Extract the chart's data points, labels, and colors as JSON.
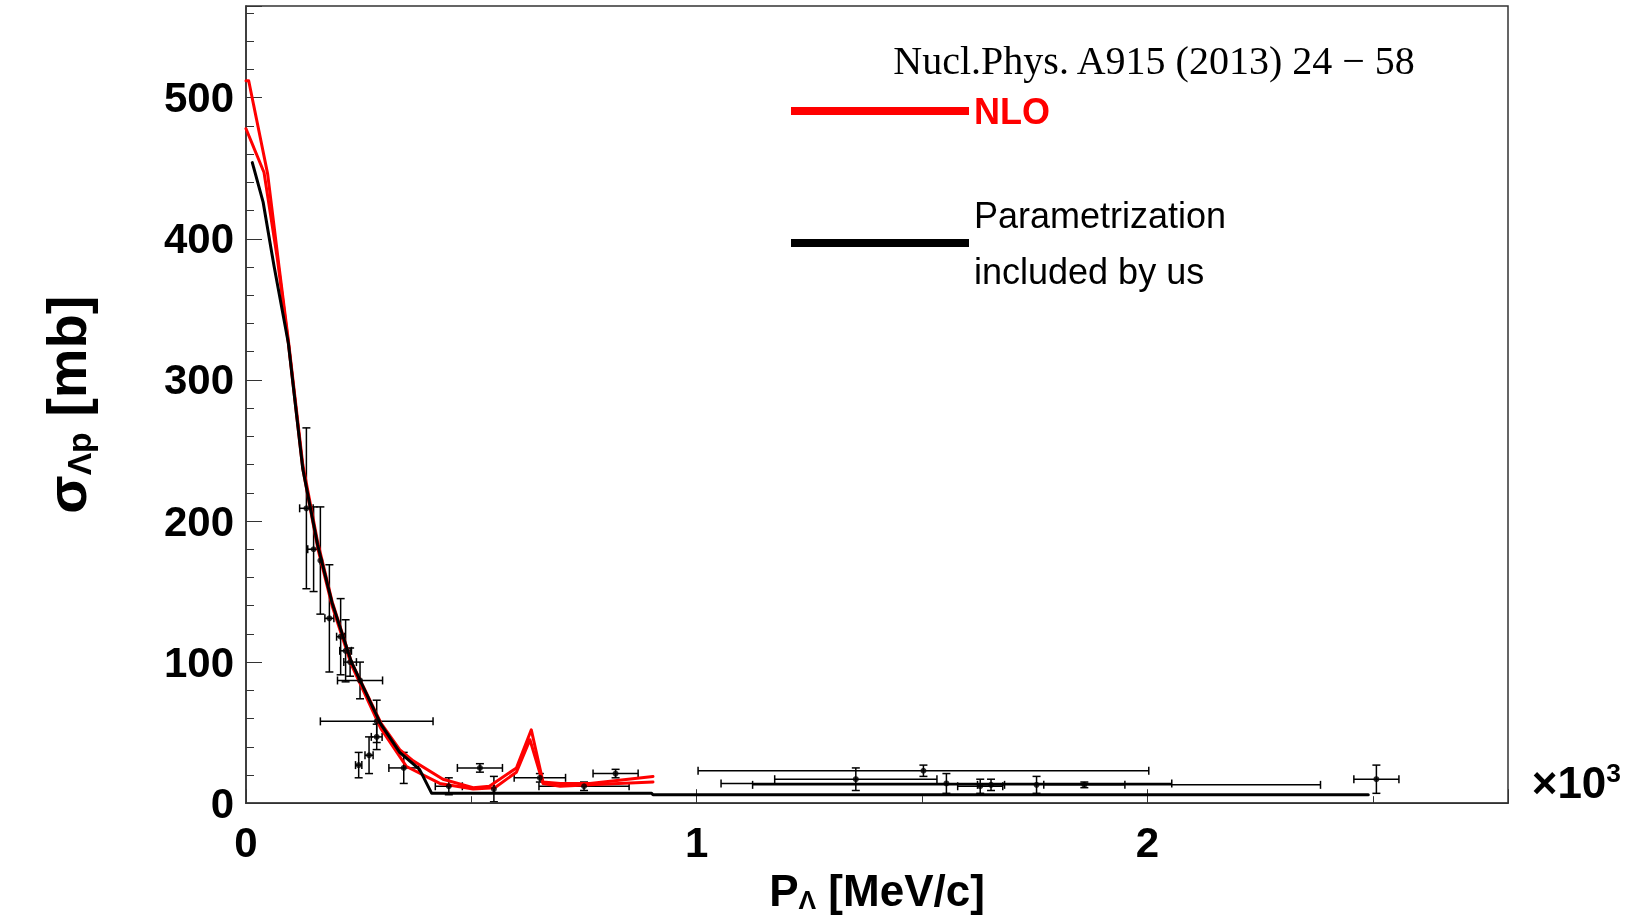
{
  "chart_data": {
    "type": "line",
    "xlabel": "P$_{Λ}$ [MeV/c]",
    "ylabel": "σ$_{Λp}$ [mb]",
    "xlim": [
      0,
      2.8
    ],
    "xticks": [
      0,
      1,
      2
    ],
    "ylim": [
      0,
      565
    ],
    "yticks": [
      0,
      100,
      200,
      300,
      400,
      500
    ],
    "grid": false,
    "legend": "top right",
    "marker": "none",
    "annotations": [
      "Nucl.Phys. A915 (2013) 24 − 58",
      "×10$^{3}$"
    ],
    "series": [
      {
        "name": "NLO",
        "color": "#ff0000",
        "x": [
          0,
          0.006,
          0.048,
          0.073,
          0.094,
          0.126,
          0.159,
          0.191,
          0.234,
          0.299,
          0.341,
          0.371,
          0.437,
          0.504,
          0.54,
          0.6,
          0.633,
          0.659,
          0.697,
          0.763,
          0.903
        ],
        "values": [
          512,
          512,
          446,
          381,
          328,
          240,
          185,
          143,
          100,
          57,
          38,
          30,
          17,
          11,
          12,
          25,
          52,
          15,
          14,
          14,
          19
        ]
      },
      {
        "color": "#ff0000",
        "x": [
          0,
          0.04,
          0.07,
          0.094,
          0.126,
          0.159,
          0.191,
          0.234,
          0.299,
          0.356,
          0.43,
          0.504,
          0.552,
          0.6,
          0.63,
          0.659,
          0.697,
          0.763,
          0.903
        ],
        "values": [
          478,
          447,
          385,
          326,
          237,
          181,
          140,
          98,
          53,
          26,
          14,
          10,
          11,
          22,
          45,
          14,
          12,
          13,
          15
        ]
      },
      {
        "name": "Parametrization included by us",
        "color": "#000000",
        "x": [
          0.014,
          0.038,
          0.062,
          0.094,
          0.126,
          0.159,
          0.191,
          0.234,
          0.299,
          0.341,
          0.385,
          0.412,
          0.9,
          0.903,
          2.49
        ],
        "values": [
          454,
          426,
          381,
          326,
          237,
          183,
          142,
          100,
          56,
          36,
          24,
          7,
          7,
          6,
          6
        ]
      },
      {
        "type": "scatter",
        "color": "#000000",
        "marker": "circle",
        "x": [
          0.134,
          0.15,
          0.165,
          0.185,
          0.21,
          0.221,
          0.231,
          0.253,
          0.29,
          0.29,
          0.273,
          0.25,
          0.35,
          0.45,
          0.519,
          0.55,
          0.652,
          0.75,
          0.82,
          1.503,
          1.353,
          1.554,
          1.754,
          1.629,
          1.653,
          1.86,
          2.508
        ],
        "values": [
          209,
          180,
          172,
          131,
          118,
          108,
          100,
          87,
          58,
          47,
          34,
          27,
          25,
          12,
          25,
          10,
          18,
          12,
          21,
          23,
          17,
          14,
          13,
          12,
          13,
          13,
          17
        ],
        "errors": [
          57,
          30,
          38,
          38,
          27,
          22,
          10,
          13,
          15,
          9,
          13,
          9,
          11,
          6,
          3,
          9,
          3,
          3,
          3,
          4,
          8,
          7,
          6,
          5,
          4,
          2,
          10
        ],
        "xerrors": [
          0.015,
          0.013,
          null,
          0.01,
          0.009,
          0.013,
          0.014,
          0.05,
          0.125,
          0.012,
          0.009,
          0.007,
          0.033,
          0.03,
          0.05,
          null,
          0.057,
          0.1,
          0.05,
          0.5,
          0.18,
          0.5,
          0.63,
          0.05,
          0.03,
          0.09,
          0.05
        ]
      }
    ]
  }
}
